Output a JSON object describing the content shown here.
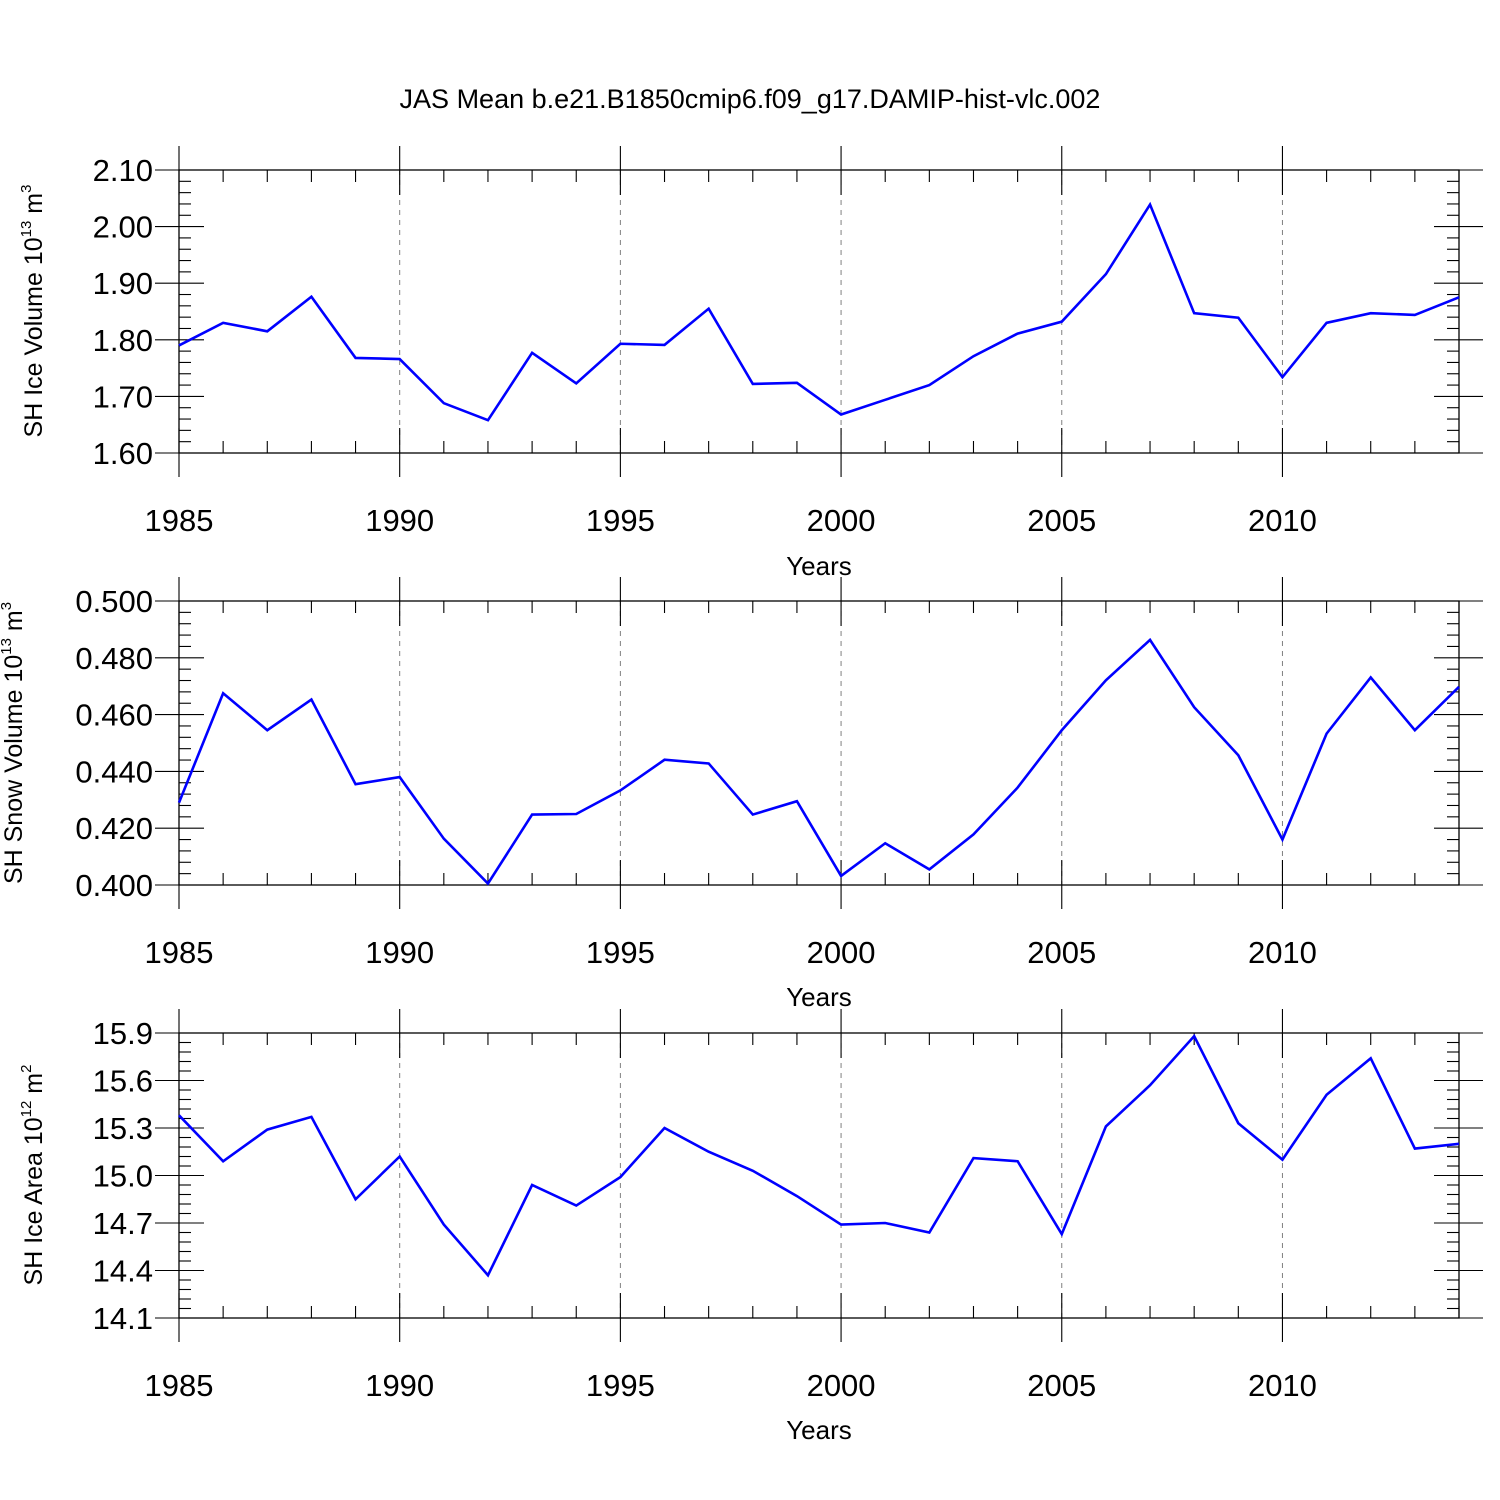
{
  "title": "JAS Mean b.e21.B1850cmip6.f09_g17.DAMIP-hist-vlc.002",
  "line_color": "#0000ff",
  "chart_data": [
    {
      "type": "line",
      "title": "JAS Mean b.e21.B1850cmip6.f09_g17.DAMIP-hist-vlc.002",
      "xlabel": "Years",
      "ylabel_main": "SH Ice Volume 10",
      "ylabel_exp": "13",
      "ylabel_unit": "m",
      "ylabel_unit_exp": "3",
      "xlim": [
        1985,
        2014
      ],
      "ylim": [
        1.6,
        2.1
      ],
      "x_ticks": [
        1985,
        1990,
        1995,
        2000,
        2005,
        2010
      ],
      "x_tick_labels": [
        "1985",
        "1990",
        "1995",
        "2000",
        "2005",
        "2010"
      ],
      "y_ticks": [
        1.6,
        1.7,
        1.8,
        1.9,
        2.0,
        2.1
      ],
      "y_tick_labels": [
        "1.60",
        "1.70",
        "1.80",
        "1.90",
        "2.00",
        "2.10"
      ],
      "grid": "vertical dashed at major x ticks",
      "x": [
        1985,
        1986,
        1987,
        1988,
        1989,
        1990,
        1991,
        1992,
        1993,
        1994,
        1995,
        1996,
        1997,
        1998,
        1999,
        2000,
        2001,
        2002,
        2003,
        2004,
        2005,
        2006,
        2007,
        2008,
        2009,
        2010,
        2011,
        2012,
        2013,
        2014
      ],
      "series": [
        {
          "name": "SH Ice Volume",
          "values": [
            1.79,
            1.83,
            1.815,
            1.876,
            1.768,
            1.766,
            1.688,
            1.658,
            1.777,
            1.723,
            1.793,
            1.791,
            1.855,
            1.722,
            1.724,
            1.668,
            1.694,
            1.72,
            1.771,
            1.811,
            1.832,
            1.916,
            2.039,
            1.847,
            1.839,
            1.734,
            1.83,
            1.847,
            1.844,
            1.875
          ]
        }
      ]
    },
    {
      "type": "line",
      "xlabel": "Years",
      "ylabel_main": "SH Snow Volume 10",
      "ylabel_exp": "13",
      "ylabel_unit": "m",
      "ylabel_unit_exp": "3",
      "xlim": [
        1985,
        2014
      ],
      "ylim": [
        0.4,
        0.5
      ],
      "x_ticks": [
        1985,
        1990,
        1995,
        2000,
        2005,
        2010
      ],
      "x_tick_labels": [
        "1985",
        "1990",
        "1995",
        "2000",
        "2005",
        "2010"
      ],
      "y_ticks": [
        0.4,
        0.42,
        0.44,
        0.46,
        0.48,
        0.5
      ],
      "y_tick_labels": [
        "0.400",
        "0.420",
        "0.440",
        "0.460",
        "0.480",
        "0.500"
      ],
      "grid": "vertical dashed at major x ticks",
      "x": [
        1985,
        1986,
        1987,
        1988,
        1989,
        1990,
        1991,
        1992,
        1993,
        1994,
        1995,
        1996,
        1997,
        1998,
        1999,
        2000,
        2001,
        2002,
        2003,
        2004,
        2005,
        2006,
        2007,
        2008,
        2009,
        2010,
        2011,
        2012,
        2013,
        2014
      ],
      "series": [
        {
          "name": "SH Snow Volume",
          "values": [
            0.429,
            0.4675,
            0.4545,
            0.4653,
            0.4355,
            0.438,
            0.4163,
            0.4005,
            0.4248,
            0.425,
            0.4333,
            0.4441,
            0.4428,
            0.4248,
            0.4295,
            0.4032,
            0.4147,
            0.4055,
            0.4178,
            0.4343,
            0.4545,
            0.4721,
            0.4863,
            0.4626,
            0.4457,
            0.416,
            0.4533,
            0.4731,
            0.4545,
            0.4698
          ]
        }
      ]
    },
    {
      "type": "line",
      "xlabel": "Years",
      "ylabel_main": "SH Ice Area 10",
      "ylabel_exp": "12",
      "ylabel_unit": "m",
      "ylabel_unit_exp": "2",
      "xlim": [
        1985,
        2014
      ],
      "ylim": [
        14.1,
        15.9
      ],
      "x_ticks": [
        1985,
        1990,
        1995,
        2000,
        2005,
        2010
      ],
      "x_tick_labels": [
        "1985",
        "1990",
        "1995",
        "2000",
        "2005",
        "2010"
      ],
      "y_ticks": [
        14.1,
        14.4,
        14.7,
        15.0,
        15.3,
        15.6,
        15.9
      ],
      "y_tick_labels": [
        "14.1",
        "14.4",
        "14.7",
        "15.0",
        "15.3",
        "15.6",
        "15.9"
      ],
      "grid": "vertical dashed at major x ticks",
      "x": [
        1985,
        1986,
        1987,
        1988,
        1989,
        1990,
        1991,
        1992,
        1993,
        1994,
        1995,
        1996,
        1997,
        1998,
        1999,
        2000,
        2001,
        2002,
        2003,
        2004,
        2005,
        2006,
        2007,
        2008,
        2009,
        2010,
        2011,
        2012,
        2013,
        2014
      ],
      "series": [
        {
          "name": "SH Ice Area",
          "values": [
            15.38,
            15.09,
            15.29,
            15.37,
            14.85,
            15.12,
            14.69,
            14.37,
            14.94,
            14.81,
            14.99,
            15.3,
            15.15,
            15.03,
            14.87,
            14.69,
            14.7,
            14.64,
            15.11,
            15.09,
            14.63,
            15.31,
            15.57,
            15.88,
            15.33,
            15.1,
            15.51,
            15.74,
            15.17,
            15.2
          ]
        }
      ]
    }
  ]
}
